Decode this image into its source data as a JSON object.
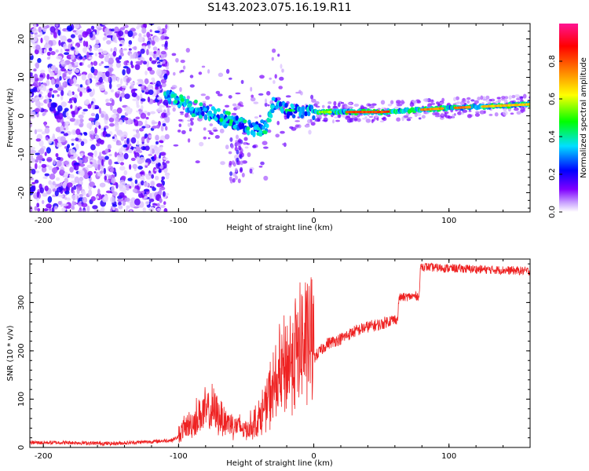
{
  "title": "S143.2023.075.16.19.R11",
  "chart_data": [
    {
      "type": "heatmap",
      "xlabel": "Height of straight line (km)",
      "ylabel": "Frequency (Hz)",
      "xlim": [
        -210,
        160
      ],
      "ylim": [
        -25,
        24
      ],
      "xticks": [
        -200,
        -100,
        0,
        100
      ],
      "xtick_labels": [
        "-200",
        "-100",
        "0",
        "100"
      ],
      "yticks": [
        -20,
        -10,
        0,
        10,
        20
      ],
      "ytick_labels": [
        "-20",
        "-10",
        "0",
        "10",
        "20"
      ],
      "ridge": [
        {
          "x": -108,
          "y": 5
        },
        {
          "x": -95,
          "y": 3
        },
        {
          "x": -85,
          "y": 1.5
        },
        {
          "x": -70,
          "y": -0.5
        },
        {
          "x": -55,
          "y": -2
        },
        {
          "x": -45,
          "y": -3.5
        },
        {
          "x": -35,
          "y": -3
        },
        {
          "x": -30,
          "y": 3
        },
        {
          "x": -20,
          "y": 1.5
        },
        {
          "x": 0,
          "y": 1
        },
        {
          "x": 50,
          "y": 1
        },
        {
          "x": 100,
          "y": 2
        },
        {
          "x": 160,
          "y": 3
        }
      ],
      "colorbar": {
        "label": "Normalized spectral amplitude",
        "ticks": [
          0.0,
          0.2,
          0.4,
          0.6,
          0.8
        ],
        "tick_labels": [
          "0.0",
          "0.2",
          "0.4",
          "0.6",
          "0.8"
        ],
        "range": [
          0,
          1
        ],
        "colors": [
          "#ffffff",
          "#8000ff",
          "#0000ff",
          "#00ffff",
          "#00ff00",
          "#ffff00",
          "#ff8000",
          "#ff0000",
          "#ff1493"
        ]
      }
    },
    {
      "type": "line",
      "xlabel": "Height of straight line (km)",
      "ylabel": "SNR (10 * v/v)",
      "xlim": [
        -210,
        160
      ],
      "ylim": [
        0,
        390
      ],
      "xticks": [
        -200,
        -100,
        0,
        100
      ],
      "xtick_labels": [
        "-200",
        "-100",
        "0",
        "100"
      ],
      "yticks": [
        0,
        100,
        200,
        300
      ],
      "ytick_labels": [
        "0",
        "100",
        "200",
        "300"
      ],
      "color": "#ee2222",
      "series": [
        {
          "name": "SNR",
          "x": [
            -210,
            -180,
            -150,
            -120,
            -105,
            -100,
            -95,
            -90,
            -85,
            -80,
            -75,
            -70,
            -65,
            -60,
            -55,
            -50,
            -45,
            -40,
            -35,
            -30,
            -25,
            -20,
            -15,
            -10,
            -5,
            0,
            5,
            10,
            20,
            30,
            40,
            50,
            55,
            62,
            63,
            70,
            78,
            79,
            90,
            110,
            130,
            150,
            160
          ],
          "y": [
            10,
            10,
            8,
            12,
            15,
            22,
            35,
            40,
            55,
            60,
            62,
            55,
            45,
            40,
            35,
            30,
            40,
            50,
            75,
            100,
            120,
            140,
            160,
            170,
            180,
            185,
            200,
            215,
            225,
            240,
            250,
            255,
            262,
            265,
            310,
            312,
            314,
            375,
            372,
            370,
            368,
            366,
            365
          ]
        }
      ]
    }
  ]
}
